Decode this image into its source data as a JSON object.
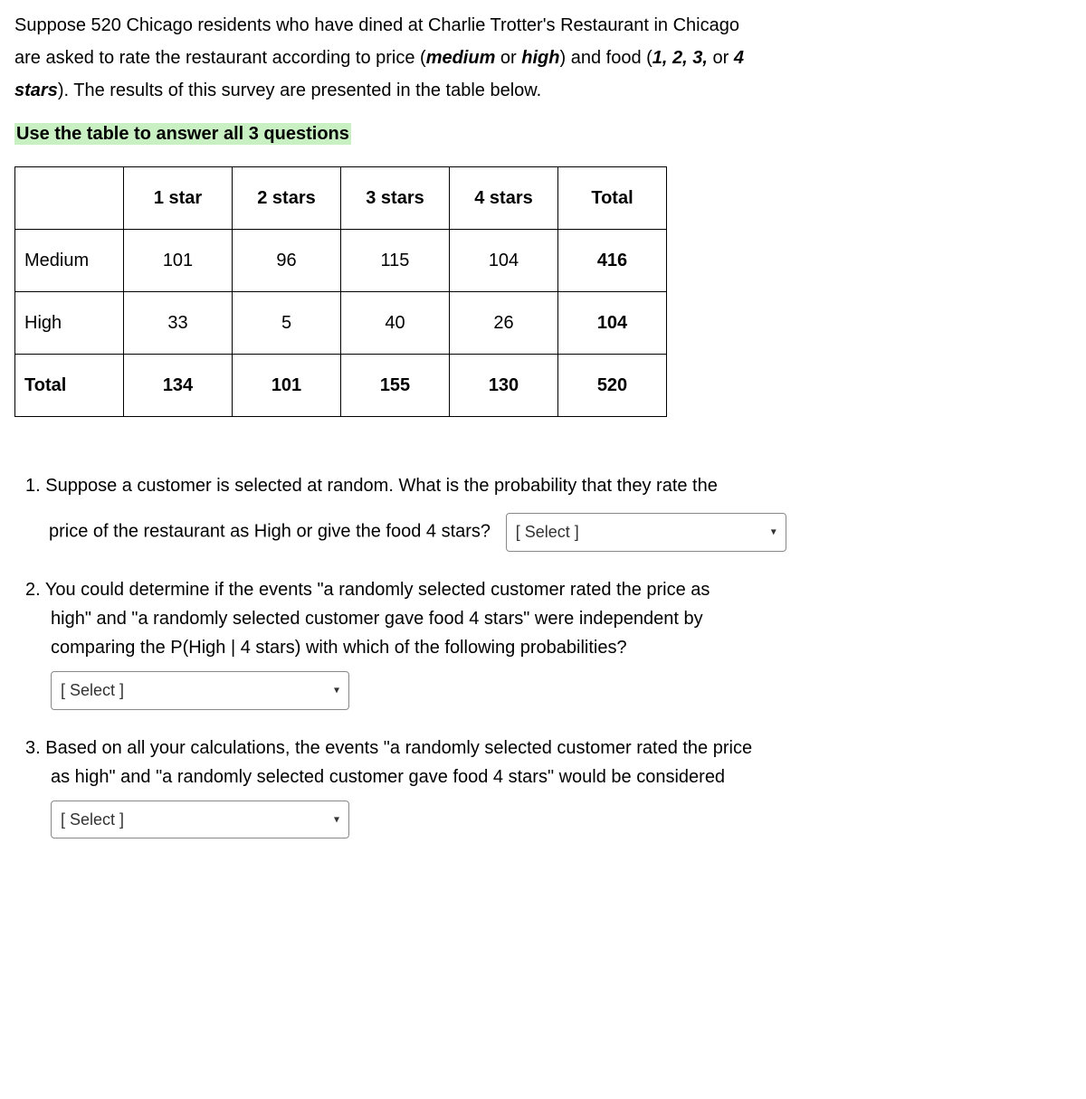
{
  "intro": {
    "line1_pre": "Suppose 520 Chicago residents who have dined at Charlie Trotter's Restaurant in Chicago",
    "line2_pre": "are asked to rate the restaurant according to price (",
    "medium": "medium",
    "or1": " or ",
    "high": "high",
    "line2_mid": ") and food (",
    "stars_list": "1, 2, 3,",
    "or2": " or ",
    "four": "4",
    "stars_word": "stars",
    "line3_post": ").  The results of this survey are presented in the table below."
  },
  "highlight_text": "Use the table to answer all 3 questions",
  "table": {
    "headers": [
      "",
      "1 star",
      "2 stars",
      "3 stars",
      "4 stars",
      "Total"
    ],
    "rows": [
      {
        "label": "Medium",
        "cells": [
          "101",
          "96",
          "115",
          "104",
          "416"
        ],
        "is_total": false
      },
      {
        "label": "High",
        "cells": [
          "33",
          "5",
          "40",
          "26",
          "104"
        ],
        "is_total": false
      },
      {
        "label": "Total",
        "cells": [
          "134",
          "101",
          "155",
          "130",
          "520"
        ],
        "is_total": true
      }
    ]
  },
  "questions": {
    "q1": {
      "line1": "1. Suppose a customer is selected at random.  What is the probability that they rate the",
      "line2": "price of the restaurant as High or give the food 4 stars?",
      "select_placeholder": "[ Select ]"
    },
    "q2": {
      "line1": "2. You could determine if the events \"a randomly selected customer rated the price as",
      "line2": "high\" and \"a randomly selected customer gave food 4 stars\" were independent by",
      "line3": "comparing the P(High | 4 stars) with which of the following probabilities?",
      "select_placeholder": "[ Select ]"
    },
    "q3": {
      "line1": "3. Based on all your calculations, the events \"a randomly selected customer rated the price",
      "line2": "as high\" and \"a randomly selected customer gave food 4 stars\" would be considered",
      "select_placeholder": "[ Select ]"
    }
  }
}
